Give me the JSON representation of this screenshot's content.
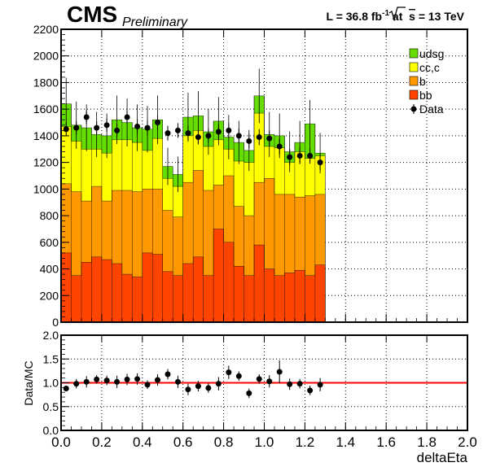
{
  "header": {
    "experiment": "CMS",
    "status": "Preliminary",
    "lumi_prefix": "L = 36.8 fb",
    "lumi_exponent": "-1",
    "lumi_mid": " at  ",
    "sqrt_s": "s",
    "energy": " = 13 TeV"
  },
  "chart_data": [
    {
      "type": "histogram-stack",
      "x_range": [
        0,
        2.0
      ],
      "ylim": [
        0,
        2200
      ],
      "yticks": [
        0,
        200,
        400,
        600,
        800,
        1000,
        1200,
        1400,
        1600,
        1800,
        2000,
        2200
      ],
      "grid": true,
      "legend_position": "top-right",
      "bin_edges": [
        0.0,
        0.05,
        0.1,
        0.15,
        0.2,
        0.25,
        0.3,
        0.35,
        0.4,
        0.45,
        0.5,
        0.55,
        0.6,
        0.65,
        0.7,
        0.75,
        0.8,
        0.85,
        0.9,
        0.95,
        1.0,
        1.05,
        1.1,
        1.15,
        1.2,
        1.25,
        1.3
      ],
      "series": [
        {
          "name": "bb",
          "color": "#ff4400",
          "values": [
            520,
            350,
            450,
            490,
            470,
            440,
            360,
            340,
            520,
            510,
            380,
            350,
            440,
            490,
            350,
            700,
            600,
            420,
            350,
            580,
            400,
            350,
            370,
            390,
            350,
            430
          ]
        },
        {
          "name": "b",
          "color": "#ff9900",
          "values": [
            520,
            630,
            460,
            530,
            440,
            550,
            630,
            640,
            480,
            490,
            460,
            440,
            610,
            650,
            640,
            330,
            500,
            450,
            450,
            470,
            680,
            610,
            590,
            550,
            600,
            530
          ]
        },
        {
          "name": "cc,c",
          "color": "#ffff00",
          "values": [
            430,
            380,
            390,
            280,
            360,
            380,
            380,
            370,
            290,
            380,
            240,
            230,
            350,
            300,
            330,
            340,
            200,
            340,
            400,
            520,
            240,
            350,
            240,
            340,
            280,
            290
          ]
        },
        {
          "name": "udsg",
          "color": "#66dd00",
          "values": [
            170,
            120,
            160,
            110,
            130,
            150,
            130,
            110,
            160,
            140,
            90,
            90,
            140,
            110,
            110,
            140,
            90,
            140,
            90,
            130,
            90,
            90,
            80,
            70,
            260,
            20
          ]
        }
      ],
      "data_series": {
        "name": "Data",
        "x": [
          0.025,
          0.075,
          0.125,
          0.175,
          0.225,
          0.275,
          0.325,
          0.375,
          0.425,
          0.475,
          0.525,
          0.575,
          0.625,
          0.675,
          0.725,
          0.775,
          0.825,
          0.875,
          0.925,
          0.975,
          1.025,
          1.075,
          1.125,
          1.175,
          1.225,
          1.275
        ],
        "y": [
          1450,
          1460,
          1540,
          1460,
          1480,
          1440,
          1540,
          1470,
          1460,
          1500,
          1420,
          1440,
          1420,
          1390,
          1400,
          1430,
          1440,
          1400,
          1360,
          1390,
          1380,
          1320,
          1240,
          1250,
          1250,
          1200
        ],
        "err": [
          50,
          50,
          50,
          50,
          50,
          50,
          50,
          55,
          55,
          55,
          55,
          55,
          55,
          55,
          55,
          55,
          55,
          55,
          55,
          60,
          60,
          60,
          60,
          60,
          60,
          60
        ]
      }
    },
    {
      "type": "scatter",
      "xlabel": "deltaEta",
      "ylabel": "Data/MC",
      "x_range": [
        0,
        2.0
      ],
      "xticks": [
        "0.0",
        "0.2",
        "0.4",
        "0.6",
        "0.8",
        "1.0",
        "1.2",
        "1.4",
        "1.6",
        "1.8",
        "2.0"
      ],
      "ylim": [
        0,
        2.0
      ],
      "yticks": [
        "0.0",
        "0.5",
        "1.0",
        "1.5",
        "2.0"
      ],
      "reference_line": 1.0,
      "reference_color": "#ff0000",
      "grid": true,
      "x": [
        0.025,
        0.075,
        0.125,
        0.175,
        0.225,
        0.275,
        0.325,
        0.375,
        0.425,
        0.475,
        0.525,
        0.575,
        0.625,
        0.675,
        0.725,
        0.775,
        0.825,
        0.875,
        0.925,
        0.975,
        1.025,
        1.075,
        1.125,
        1.175,
        1.225,
        1.275
      ],
      "y": [
        0.88,
        0.98,
        1.02,
        1.07,
        1.05,
        1.02,
        1.07,
        1.08,
        0.96,
        1.06,
        1.18,
        1.02,
        0.86,
        0.93,
        0.89,
        0.98,
        1.22,
        1.14,
        0.78,
        1.08,
        1.03,
        1.23,
        0.97,
        0.98,
        0.84,
        0.96
      ],
      "err": [
        0.06,
        0.1,
        0.12,
        0.09,
        0.1,
        0.13,
        0.12,
        0.12,
        0.09,
        0.12,
        0.11,
        0.13,
        0.12,
        0.11,
        0.1,
        0.14,
        0.14,
        0.1,
        0.1,
        0.1,
        0.13,
        0.24,
        0.12,
        0.1,
        0.1,
        0.14
      ]
    }
  ]
}
